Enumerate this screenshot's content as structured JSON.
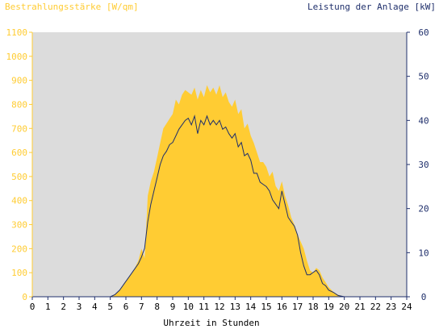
{
  "chart_data": {
    "type": "area",
    "title_left": "Bestrahlungsstärke [W/qm]",
    "title_right": "Leistung der Anlage [kW]",
    "xlabel": "Uhrzeit in Stunden",
    "xlim": [
      0,
      24
    ],
    "y_left_lim": [
      0,
      1100
    ],
    "y_right_lim": [
      0,
      60
    ],
    "x_ticks": [
      "0",
      "1",
      "2",
      "3",
      "4",
      "5",
      "6",
      "7",
      "8",
      "9",
      "10",
      "11",
      "12",
      "13",
      "14",
      "15",
      "16",
      "17",
      "18",
      "19",
      "20",
      "21",
      "22",
      "23",
      "24"
    ],
    "y_left_ticks": [
      "0",
      "100",
      "200",
      "300",
      "400",
      "500",
      "600",
      "700",
      "800",
      "900",
      "1000",
      "1100"
    ],
    "y_right_ticks": [
      "0",
      "10",
      "20",
      "30",
      "40",
      "50",
      "60"
    ],
    "grid": false,
    "colors": {
      "irradiance": "#ffcc33",
      "power": "#1f2f6b",
      "plot_bg": "#dcdcdc",
      "left_axis": "#ffcc33",
      "right_axis": "#1f2f6b"
    },
    "series": [
      {
        "name": "Bestrahlungsstärke [W/qm]",
        "axis": "left",
        "x": [
          0,
          5.0,
          5.3,
          5.6,
          5.9,
          6.2,
          6.5,
          6.8,
          7.0,
          7.2,
          7.4,
          7.6,
          7.8,
          8.0,
          8.2,
          8.4,
          8.6,
          8.8,
          9.0,
          9.2,
          9.4,
          9.6,
          9.8,
          10.0,
          10.2,
          10.4,
          10.6,
          10.8,
          11.0,
          11.2,
          11.4,
          11.6,
          11.8,
          12.0,
          12.2,
          12.4,
          12.6,
          12.8,
          13.0,
          13.2,
          13.4,
          13.6,
          13.8,
          14.0,
          14.2,
          14.4,
          14.6,
          14.8,
          15.0,
          15.2,
          15.4,
          15.6,
          15.8,
          16.0,
          16.2,
          16.4,
          16.6,
          16.8,
          17.0,
          17.2,
          17.4,
          17.6,
          17.8,
          18.0,
          18.2,
          18.4,
          18.6,
          18.8,
          19.0,
          19.3,
          19.6,
          20.0,
          24
        ],
        "values": [
          0,
          0,
          10,
          30,
          55,
          80,
          110,
          150,
          200,
          160,
          420,
          480,
          520,
          580,
          640,
          700,
          720,
          740,
          760,
          820,
          800,
          840,
          860,
          850,
          840,
          870,
          820,
          860,
          830,
          880,
          850,
          870,
          840,
          880,
          830,
          850,
          810,
          790,
          820,
          760,
          780,
          700,
          720,
          670,
          640,
          600,
          560,
          560,
          540,
          500,
          520,
          460,
          440,
          480,
          420,
          380,
          330,
          300,
          260,
          230,
          200,
          150,
          110,
          100,
          120,
          110,
          80,
          60,
          40,
          20,
          8,
          0,
          0
        ]
      },
      {
        "name": "Leistung der Anlage [kW]",
        "axis": "right",
        "x": [
          0,
          5.0,
          5.3,
          5.6,
          5.9,
          6.2,
          6.5,
          6.8,
          7.0,
          7.2,
          7.4,
          7.6,
          7.8,
          8.0,
          8.2,
          8.4,
          8.6,
          8.8,
          9.0,
          9.2,
          9.4,
          9.6,
          9.8,
          10.0,
          10.2,
          10.4,
          10.6,
          10.8,
          11.0,
          11.2,
          11.4,
          11.6,
          11.8,
          12.0,
          12.2,
          12.4,
          12.6,
          12.8,
          13.0,
          13.2,
          13.4,
          13.6,
          13.8,
          14.0,
          14.2,
          14.4,
          14.6,
          14.8,
          15.0,
          15.2,
          15.4,
          15.6,
          15.8,
          16.0,
          16.2,
          16.4,
          16.6,
          16.8,
          17.0,
          17.2,
          17.4,
          17.6,
          17.8,
          18.0,
          18.2,
          18.4,
          18.6,
          18.8,
          19.0,
          19.3,
          19.6,
          20.0,
          24
        ],
        "values": [
          0,
          0,
          0.5,
          1.5,
          3,
          4.5,
          6,
          7.5,
          9,
          11,
          17,
          21,
          24,
          27,
          30,
          32,
          33,
          34.5,
          35,
          36.5,
          38,
          39,
          40,
          40.5,
          39,
          41,
          37,
          40,
          39,
          41,
          39,
          40,
          39,
          40,
          38,
          38.5,
          37,
          36,
          37,
          34,
          35,
          32,
          32.5,
          31,
          28,
          28,
          26,
          25.5,
          25,
          24,
          22,
          21,
          20,
          24,
          21,
          18,
          17,
          16,
          14,
          10,
          7,
          5,
          5,
          5.5,
          6,
          5,
          3,
          2.5,
          1.5,
          1,
          0.3,
          0,
          0
        ]
      }
    ]
  }
}
